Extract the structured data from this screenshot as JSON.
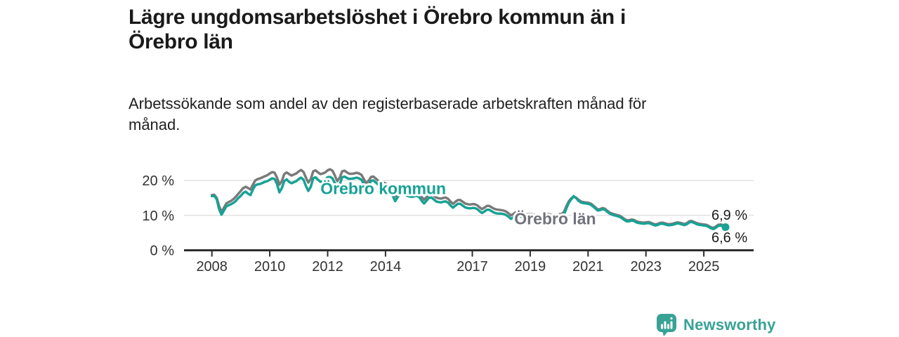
{
  "title": {
    "lines": [
      "Lägre ungdomsarbetslöshet i Örebro kommun än i",
      "Örebro län"
    ]
  },
  "subtitle": {
    "lines": [
      "Arbetssökande som andel av den registerbaserade arbetskraften månad för",
      "månad."
    ]
  },
  "branding": {
    "logo_text": "Newsworthy",
    "logo_icon": "newsworthy-speech-bubble-bar-chart-icon"
  },
  "colors": {
    "kommun": "#17a295",
    "lan": "#7a7a7a",
    "lan_label": "#71717c",
    "axis": "#2e2e2e",
    "grid": "#dcdcdc",
    "text": "#1a1a1a",
    "tick_text": "#333333",
    "brand": "#38a295"
  },
  "chart_data": {
    "type": "line",
    "frequency": "monthly",
    "x_start_year": 2008,
    "x_start_month": 1,
    "x_end_year": 2025,
    "x_end_month": 10,
    "xlim": [
      2007.0,
      2026.7
    ],
    "ylim": [
      0,
      24.5
    ],
    "grid": "horizontal",
    "legend_position": "inline-labels",
    "x_ticks": [
      {
        "year": 2008,
        "label": "2008"
      },
      {
        "year": 2010,
        "label": "2010"
      },
      {
        "year": 2012,
        "label": "2012"
      },
      {
        "year": 2014,
        "label": "2014"
      },
      {
        "year": 2017,
        "label": "2017"
      },
      {
        "year": 2019,
        "label": "2019"
      },
      {
        "year": 2021,
        "label": "2021"
      },
      {
        "year": 2023,
        "label": "2023"
      },
      {
        "year": 2025,
        "label": "2025"
      }
    ],
    "y_ticks": [
      {
        "value": 0,
        "label": "0 %"
      },
      {
        "value": 10,
        "label": "10 %"
      },
      {
        "value": 20,
        "label": "20 %"
      }
    ],
    "series": [
      {
        "name": "Örebro län",
        "color_key": "lan",
        "label_color_key": "lan_label",
        "end_value": 6.9,
        "end_label": "6,9 %",
        "inline_label_x_year": 2018.45,
        "inline_label_y_pct": 9.0,
        "values": [
          15.8,
          15.9,
          15.0,
          12.6,
          11.0,
          12.2,
          13.4,
          13.8,
          14.2,
          14.7,
          15.4,
          16.2,
          17.0,
          17.8,
          18.2,
          17.8,
          17.4,
          18.8,
          20.0,
          20.4,
          20.6,
          20.9,
          21.2,
          21.5,
          22.0,
          22.4,
          22.2,
          20.8,
          18.8,
          19.8,
          21.8,
          22.3,
          21.8,
          21.4,
          21.7,
          22.0,
          22.6,
          23.0,
          22.4,
          20.8,
          19.4,
          20.4,
          22.6,
          22.9,
          22.3,
          21.8,
          22.0,
          22.3,
          22.9,
          23.2,
          22.8,
          21.4,
          19.8,
          20.8,
          22.6,
          22.8,
          22.3,
          21.9,
          21.9,
          22.0,
          22.2,
          22.0,
          21.6,
          20.4,
          19.2,
          19.9,
          21.0,
          21.1,
          20.5,
          19.9,
          19.7,
          19.5,
          19.1,
          18.7,
          18.1,
          16.8,
          15.4,
          16.3,
          17.2,
          17.3,
          16.9,
          16.6,
          16.4,
          16.3,
          16.5,
          16.6,
          16.2,
          15.3,
          14.5,
          15.2,
          16.0,
          16.1,
          15.6,
          15.1,
          14.9,
          14.8,
          15.0,
          15.1,
          14.7,
          13.9,
          13.3,
          13.9,
          14.4,
          14.4,
          13.9,
          13.4,
          13.2,
          13.1,
          13.2,
          13.2,
          12.9,
          12.3,
          11.8,
          12.2,
          12.7,
          12.7,
          12.3,
          11.9,
          11.7,
          11.6,
          11.5,
          11.4,
          11.1,
          10.6,
          10.0,
          10.4,
          10.9,
          11.0,
          10.7,
          10.4,
          10.3,
          10.3,
          10.3,
          10.3,
          10.1,
          9.8,
          9.5,
          9.9,
          10.4,
          10.5,
          10.3,
          10.1,
          10.1,
          10.2,
          10.3,
          10.4,
          11.0,
          12.6,
          14.0,
          14.9,
          15.3,
          15.1,
          14.5,
          14.0,
          13.8,
          13.7,
          13.6,
          13.4,
          12.9,
          12.3,
          11.7,
          11.8,
          12.1,
          11.9,
          11.3,
          10.8,
          10.5,
          10.3,
          10.1,
          9.9,
          9.5,
          9.0,
          8.6,
          8.6,
          8.8,
          8.7,
          8.3,
          8.1,
          8.0,
          7.9,
          8.0,
          8.1,
          7.9,
          7.6,
          7.4,
          7.6,
          7.9,
          7.9,
          7.7,
          7.5,
          7.5,
          7.6,
          7.8,
          8.0,
          7.9,
          7.7,
          7.5,
          7.8,
          8.3,
          8.4,
          8.1,
          7.8,
          7.6,
          7.5,
          7.4,
          7.3,
          7.0,
          6.6,
          6.4,
          6.8,
          7.3,
          7.4,
          7.2,
          6.9
        ]
      },
      {
        "name": "Örebro kommun",
        "color_key": "kommun",
        "label_color_key": "kommun",
        "end_value": 6.6,
        "end_label": "6,6 %",
        "inline_label_x_year": 2011.75,
        "inline_label_y_pct": 17.7,
        "values": [
          15.5,
          15.6,
          14.6,
          11.8,
          10.2,
          11.4,
          12.6,
          12.9,
          13.2,
          13.6,
          14.2,
          15.0,
          15.6,
          16.4,
          16.8,
          16.2,
          15.8,
          17.4,
          18.6,
          18.9,
          19.0,
          19.3,
          19.6,
          19.8,
          20.2,
          20.6,
          20.4,
          19.0,
          16.6,
          17.8,
          19.8,
          20.3,
          19.6,
          19.2,
          19.5,
          19.8,
          20.4,
          20.8,
          20.2,
          18.4,
          17.0,
          18.2,
          20.6,
          20.9,
          20.2,
          19.6,
          19.8,
          20.2,
          20.9,
          21.0,
          20.6,
          19.2,
          17.6,
          18.8,
          20.9,
          21.1,
          20.7,
          20.4,
          20.5,
          20.6,
          20.8,
          20.6,
          20.2,
          19.0,
          17.8,
          18.6,
          19.9,
          20.0,
          19.4,
          18.8,
          18.6,
          18.4,
          18.0,
          17.6,
          17.0,
          15.6,
          14.1,
          15.2,
          16.2,
          16.3,
          15.9,
          15.6,
          15.4,
          15.3,
          15.5,
          15.6,
          15.2,
          14.2,
          13.4,
          14.2,
          15.0,
          15.1,
          14.6,
          14.0,
          13.8,
          13.7,
          13.9,
          14.0,
          13.6,
          12.8,
          12.2,
          12.8,
          13.3,
          13.3,
          12.8,
          12.3,
          12.1,
          12.0,
          12.1,
          12.1,
          11.8,
          11.2,
          10.7,
          11.1,
          11.6,
          11.6,
          11.2,
          10.8,
          10.6,
          10.5,
          10.5,
          10.4,
          10.1,
          9.6,
          9.0,
          9.4,
          9.9,
          10.0,
          9.7,
          9.4,
          9.3,
          9.3,
          9.4,
          9.4,
          9.2,
          8.9,
          8.6,
          9.0,
          9.5,
          9.6,
          9.4,
          9.2,
          9.2,
          9.3,
          9.5,
          9.6,
          10.2,
          12.0,
          13.6,
          14.6,
          15.5,
          15.0,
          14.2,
          13.7,
          13.5,
          13.4,
          13.3,
          13.1,
          12.6,
          12.0,
          11.4,
          11.5,
          11.8,
          11.6,
          11.0,
          10.5,
          10.2,
          10.0,
          9.8,
          9.6,
          9.2,
          8.7,
          8.3,
          8.3,
          8.5,
          8.4,
          8.0,
          7.8,
          7.7,
          7.6,
          7.7,
          7.8,
          7.6,
          7.3,
          7.1,
          7.3,
          7.6,
          7.6,
          7.4,
          7.2,
          7.2,
          7.3,
          7.5,
          7.7,
          7.6,
          7.4,
          7.2,
          7.5,
          8.0,
          8.1,
          7.8,
          7.5,
          7.3,
          7.2,
          7.1,
          7.0,
          6.7,
          6.3,
          6.1,
          6.5,
          7.0,
          7.1,
          6.9,
          6.6
        ]
      }
    ]
  }
}
